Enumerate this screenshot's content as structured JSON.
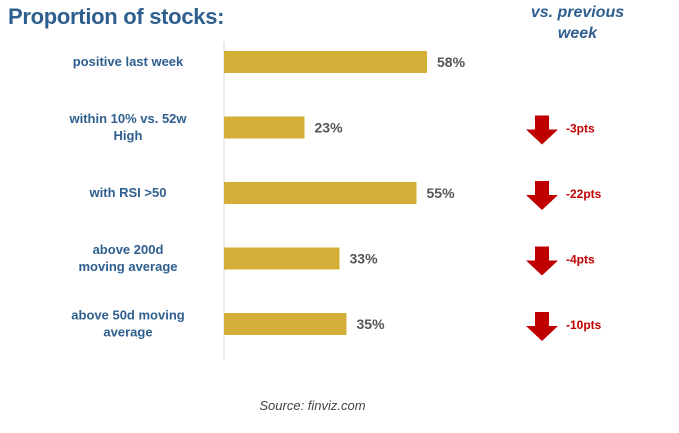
{
  "header": {
    "title": "Proportion of stocks:",
    "right_header_line1": "vs. previous",
    "right_header_line2": "week"
  },
  "source": "Source: finviz.com",
  "colors": {
    "bar": "#d4af37",
    "title": "#2f5f8f",
    "arrow": "#c00000",
    "axis": "#d9d9d9"
  },
  "chart_data": {
    "type": "bar",
    "orientation": "horizontal",
    "categories": [
      [
        "positive last week"
      ],
      [
        "within 10% vs. 52w",
        "High"
      ],
      [
        "with RSI >50"
      ],
      [
        "above 200d",
        "moving average"
      ],
      [
        "above 50d moving",
        "average"
      ]
    ],
    "values": [
      58,
      23,
      55,
      33,
      35
    ],
    "value_labels": [
      "58%",
      "23%",
      "55%",
      "33%",
      "35%"
    ],
    "changes": [
      null,
      "-3pts",
      "-22pts",
      "-4pts",
      "-10pts"
    ],
    "change_icon": "down-arrow-icon",
    "xlim": [
      0,
      100
    ]
  }
}
